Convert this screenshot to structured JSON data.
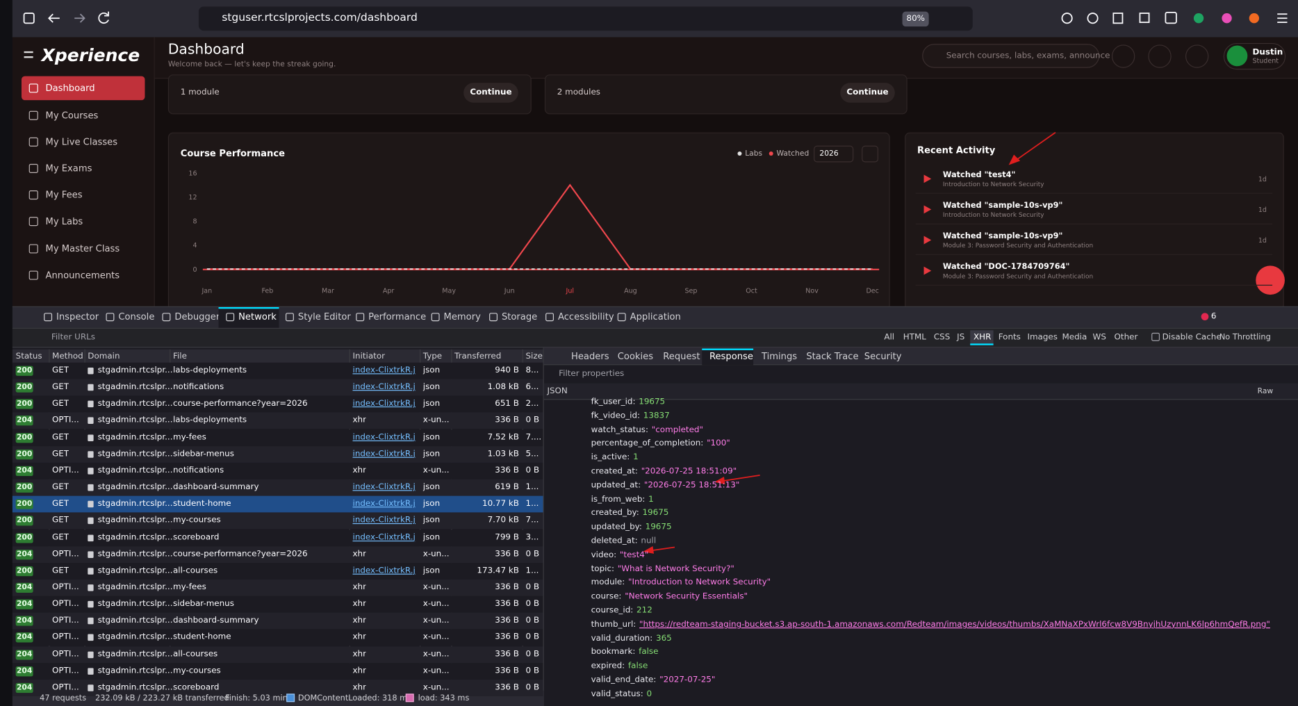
{
  "browser": {
    "url": "stguser.rtcslprojects.com/dashboard",
    "zoom": "80%"
  },
  "sidebar": {
    "logo": "Xperience",
    "items": [
      "Dashboard",
      "My Courses",
      "My Live Classes",
      "My Exams",
      "My Fees",
      "My Labs",
      "My Master Class",
      "Announcements"
    ],
    "active": 0
  },
  "header": {
    "title": "Dashboard",
    "subtitle": "Welcome back — let's keep the streak going.",
    "search_placeholder": "Search courses, labs, exams, announce",
    "user_name": "Dustin",
    "user_role": "Student"
  },
  "cards": [
    {
      "text": "1 module",
      "button": "Continue"
    },
    {
      "text": "2 modules",
      "button": "Continue"
    }
  ],
  "chart_data": {
    "type": "line",
    "title": "Course Performance",
    "year": "2026",
    "categories": [
      "Jan",
      "Feb",
      "Mar",
      "Apr",
      "May",
      "Jun",
      "Jul",
      "Aug",
      "Sep",
      "Oct",
      "Nov",
      "Dec"
    ],
    "series": [
      {
        "name": "Labs",
        "color": "#e0e0e0",
        "values": [
          0,
          0,
          0,
          0,
          0,
          0,
          0,
          0,
          0,
          0,
          0,
          0
        ]
      },
      {
        "name": "Watched",
        "color": "#f0474d",
        "values": [
          0,
          0,
          0,
          0,
          0,
          0,
          14,
          0,
          0,
          0,
          0,
          0
        ]
      }
    ],
    "ylim": [
      0,
      16
    ],
    "yticks": [
      0,
      4,
      8,
      12,
      16
    ]
  },
  "recent_activity": {
    "title": "Recent Activity",
    "items": [
      {
        "title": "Watched \"test4\"",
        "subtitle": "Introduction to Network Security",
        "time": "1d"
      },
      {
        "title": "Watched \"sample-10s-vp9\"",
        "subtitle": "Introduction to Network Security",
        "time": "1d"
      },
      {
        "title": "Watched \"sample-10s-vp9\"",
        "subtitle": "Module 3: Password Security and Authentication",
        "time": "1d"
      },
      {
        "title": "Watched \"DOC-1784709764\"",
        "subtitle": "Module 3: Password Security and Authentication"
      }
    ]
  },
  "devtools": {
    "tabs": [
      "Inspector",
      "Console",
      "Debugger",
      "Network",
      "Style Editor",
      "Performance",
      "Memory",
      "Storage",
      "Accessibility",
      "Application"
    ],
    "active_tab": 3,
    "error_count": 6,
    "filter_placeholder": "Filter URLs",
    "filters": [
      "All",
      "HTML",
      "CSS",
      "JS",
      "XHR",
      "Fonts",
      "Images",
      "Media",
      "WS",
      "Other"
    ],
    "active_filter": 4,
    "disable_cache": "Disable Cache",
    "throttling": "No Throttling",
    "columns": [
      "Status",
      "Method",
      "Domain",
      "File",
      "Initiator",
      "Type",
      "Transferred",
      "Size"
    ],
    "rows": [
      [
        "200",
        "GET",
        "stgadmin.rtcslpr...",
        "labs-deployments",
        "index-ClixtrkR.j...",
        "json",
        "940 B",
        "8..."
      ],
      [
        "200",
        "GET",
        "stgadmin.rtcslpr...",
        "notifications",
        "index-ClixtrkR.j...",
        "json",
        "1.08 kB",
        "6..."
      ],
      [
        "200",
        "GET",
        "stgadmin.rtcslpr...",
        "course-performance?year=2026",
        "index-ClixtrkR.j...",
        "json",
        "651 B",
        "2..."
      ],
      [
        "204",
        "OPTI...",
        "stgadmin.rtcslpr...",
        "labs-deployments",
        "xhr",
        "x-un...",
        "336 B",
        "0 B"
      ],
      [
        "200",
        "GET",
        "stgadmin.rtcslpr...",
        "my-fees",
        "index-ClixtrkR.j...",
        "json",
        "7.52 kB",
        "7...."
      ],
      [
        "200",
        "GET",
        "stgadmin.rtcslpr...",
        "sidebar-menus",
        "index-ClixtrkR.j...",
        "json",
        "1.03 kB",
        "5..."
      ],
      [
        "204",
        "OPTI...",
        "stgadmin.rtcslpr...",
        "notifications",
        "xhr",
        "x-un...",
        "336 B",
        "0 B"
      ],
      [
        "200",
        "GET",
        "stgadmin.rtcslpr...",
        "dashboard-summary",
        "index-ClixtrkR.j...",
        "json",
        "619 B",
        "1..."
      ],
      [
        "200",
        "GET",
        "stgadmin.rtcslpr...",
        "student-home",
        "index-ClixtrkR.j...",
        "json",
        "10.77 kB",
        "1..."
      ],
      [
        "200",
        "GET",
        "stgadmin.rtcslpr...",
        "my-courses",
        "index-ClixtrkR.j...",
        "json",
        "7.70 kB",
        "7..."
      ],
      [
        "200",
        "GET",
        "stgadmin.rtcslpr...",
        "scoreboard",
        "index-ClixtrkR.j...",
        "json",
        "799 B",
        "3..."
      ],
      [
        "204",
        "OPTI...",
        "stgadmin.rtcslpr...",
        "course-performance?year=2026",
        "xhr",
        "x-un...",
        "336 B",
        "0 B"
      ],
      [
        "200",
        "GET",
        "stgadmin.rtcslpr...",
        "all-courses",
        "index-ClixtrkR.j...",
        "json",
        "173.47 kB",
        "1..."
      ],
      [
        "204",
        "OPTI...",
        "stgadmin.rtcslpr...",
        "my-fees",
        "xhr",
        "x-un...",
        "336 B",
        "0 B"
      ],
      [
        "204",
        "OPTI...",
        "stgadmin.rtcslpr...",
        "sidebar-menus",
        "xhr",
        "x-un...",
        "336 B",
        "0 B"
      ],
      [
        "204",
        "OPTI...",
        "stgadmin.rtcslpr...",
        "dashboard-summary",
        "xhr",
        "x-un...",
        "336 B",
        "0 B"
      ],
      [
        "204",
        "OPTI...",
        "stgadmin.rtcslpr...",
        "student-home",
        "xhr",
        "x-un...",
        "336 B",
        "0 B"
      ],
      [
        "204",
        "OPTI...",
        "stgadmin.rtcslpr...",
        "all-courses",
        "xhr",
        "x-un...",
        "336 B",
        "0 B"
      ],
      [
        "204",
        "OPTI...",
        "stgadmin.rtcslpr...",
        "my-courses",
        "xhr",
        "x-un...",
        "336 B",
        "0 B"
      ],
      [
        "204",
        "OPTI...",
        "stgadmin.rtcslpr...",
        "scoreboard",
        "xhr",
        "x-un...",
        "336 B",
        "0 B"
      ]
    ],
    "selected_row": 8,
    "panel_tabs": [
      "Headers",
      "Cookies",
      "Request",
      "Response",
      "Timings",
      "Stack Trace",
      "Security"
    ],
    "active_panel_tab": 3,
    "filter_properties": "Filter properties",
    "json_label": "JSON",
    "raw_label": "Raw",
    "json": [
      [
        "fk_user_id:",
        "19675"
      ],
      [
        "fk_video_id:",
        "13837"
      ],
      [
        "watch_status:",
        "\"completed\""
      ],
      [
        "percentage_of_completion:",
        "\"100\""
      ],
      [
        "is_active:",
        "1"
      ],
      [
        "created_at:",
        "\"2026-07-25 18:51:09\""
      ],
      [
        "updated_at:",
        "\"2026-07-25 18:51:13\""
      ],
      [
        "is_from_web:",
        "1"
      ],
      [
        "created_by:",
        "19675"
      ],
      [
        "updated_by:",
        "19675"
      ],
      [
        "deleted_at:",
        "null"
      ],
      [
        "video:",
        "\"test4\""
      ],
      [
        "topic:",
        "\"What is Network Security?\""
      ],
      [
        "module:",
        "\"Introduction to Network Security\""
      ],
      [
        "course:",
        "\"Network Security Essentials\""
      ],
      [
        "course_id:",
        "212"
      ],
      [
        "thumb_url:",
        "\"https://redteam-staging-bucket.s3.ap-south-1.amazonaws.com/Redteam/images/videos/thumbs/XaMNaXPxWrl6fcw8V9BnyjhUzynnLK6lp6hmQefR.png\""
      ],
      [
        "valid_duration:",
        "365"
      ],
      [
        "bookmark:",
        "false"
      ],
      [
        "expired:",
        "false"
      ],
      [
        "valid_end_date:",
        "\"2027-07-25\""
      ],
      [
        "valid_status:",
        "0"
      ]
    ],
    "footer": [
      "47 requests",
      "232.09 kB / 223.27 kB transferred",
      "Finish: 5.03 min",
      "DOMContentLoaded: 318 ms",
      "load: 343 ms"
    ]
  }
}
